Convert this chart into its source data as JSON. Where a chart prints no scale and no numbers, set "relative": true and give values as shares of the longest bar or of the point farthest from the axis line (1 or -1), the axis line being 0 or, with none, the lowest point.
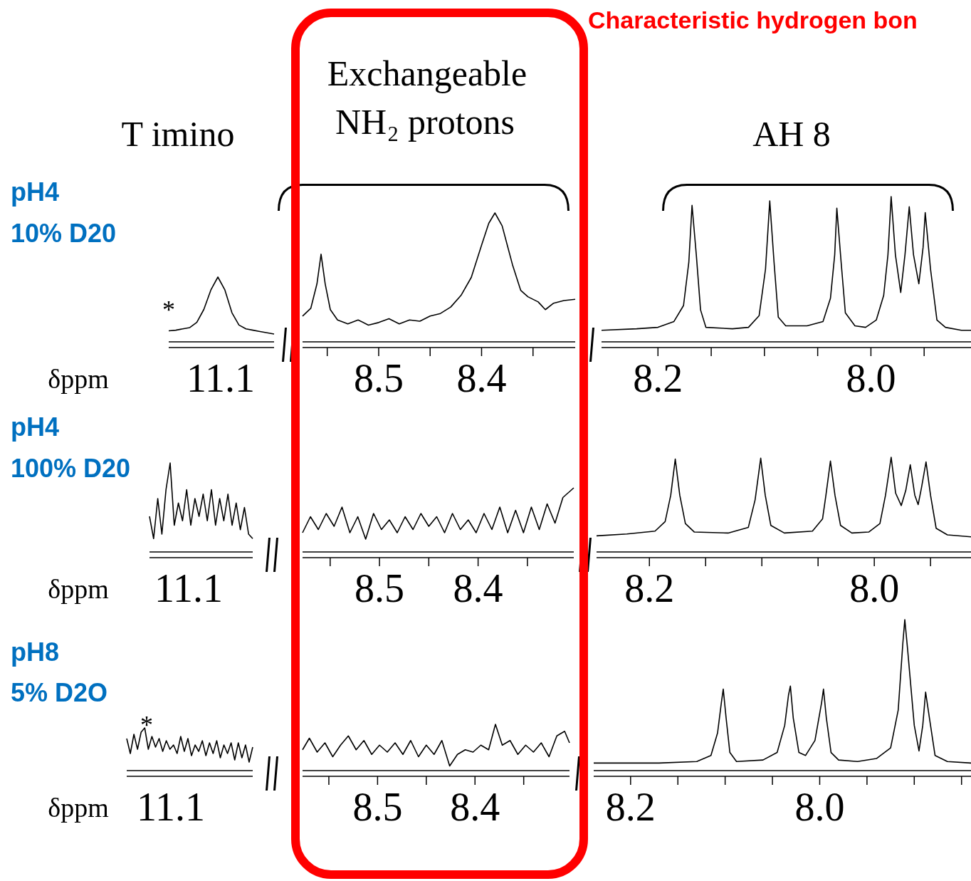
{
  "chart_data": [
    {
      "type": "line",
      "title": "pH4",
      "subtitle": "10% D20",
      "xlabel": "δppm",
      "annotations": [
        "T imino",
        "*",
        "11.1"
      ],
      "relative": true,
      "color": "#000000",
      "categories": [
        null,
        null,
        null,
        null,
        null,
        null,
        null,
        null,
        null,
        null,
        null,
        null,
        null,
        null,
        null,
        null
      ],
      "values": [
        0.17,
        0.18,
        0.2,
        0.22,
        0.3,
        0.5,
        0.8,
        1.0,
        0.8,
        0.45,
        0.26,
        0.2,
        0.18,
        0.16,
        0.14,
        0.12
      ]
    },
    {
      "type": "line",
      "annotations": [
        "Exchangeable",
        "NH₂  protons"
      ],
      "relative": true,
      "color": "#000000",
      "xlim": [
        8.574,
        8.309
      ],
      "xticks": [
        {
          "value": 8.55,
          "label": null
        },
        8.5,
        {
          "value": 8.45,
          "label": null
        },
        8.4,
        {
          "value": 8.35,
          "label": null
        }
      ],
      "x": [
        8.574,
        8.566,
        8.56,
        8.556,
        8.552,
        8.547,
        8.54,
        8.53,
        8.52,
        8.51,
        8.5,
        8.49,
        8.48,
        8.47,
        8.46,
        8.45,
        8.44,
        8.43,
        8.42,
        8.41,
        8.4,
        8.393,
        8.387,
        8.38,
        8.375,
        8.37,
        8.362,
        8.355,
        8.345,
        8.338,
        8.33,
        8.32,
        8.309
      ],
      "values": [
        0.2,
        0.26,
        0.45,
        0.68,
        0.45,
        0.25,
        0.17,
        0.14,
        0.17,
        0.13,
        0.15,
        0.18,
        0.14,
        0.17,
        0.16,
        0.2,
        0.22,
        0.27,
        0.36,
        0.5,
        0.75,
        0.92,
        1.0,
        0.9,
        0.75,
        0.6,
        0.4,
        0.35,
        0.31,
        0.25,
        0.3,
        0.32,
        0.33
      ]
    },
    {
      "type": "line",
      "annotations": [
        "AH 8",
        "Characteristic hydrogen bon"
      ],
      "relative": true,
      "color": "#000000",
      "xlim": [
        8.253,
        7.906
      ],
      "xticks": [
        8.2,
        {
          "value": 8.15,
          "label": null
        },
        {
          "value": 8.1,
          "label": null
        },
        {
          "value": 8.05,
          "label": null
        },
        {
          "value": 8.0,
          "label": "8.0"
        },
        {
          "value": 7.95,
          "label": null
        }
      ],
      "x": [
        8.253,
        8.22,
        8.2,
        8.185,
        8.176,
        8.171,
        8.168,
        8.164,
        8.16,
        8.155,
        8.13,
        8.115,
        8.105,
        8.099,
        8.095,
        8.091,
        8.087,
        8.08,
        8.06,
        8.045,
        8.038,
        8.034,
        8.032,
        8.028,
        8.024,
        8.015,
        8.005,
        7.995,
        7.988,
        7.984,
        7.981,
        7.977,
        7.972,
        7.968,
        7.964,
        7.96,
        7.955,
        7.951,
        7.949,
        7.944,
        7.938,
        7.93,
        7.915,
        7.906
      ],
      "values": [
        0.08,
        0.09,
        0.1,
        0.14,
        0.25,
        0.55,
        0.94,
        0.6,
        0.22,
        0.1,
        0.09,
        0.1,
        0.18,
        0.5,
        0.97,
        0.55,
        0.17,
        0.11,
        0.11,
        0.14,
        0.3,
        0.6,
        0.92,
        0.55,
        0.2,
        0.11,
        0.1,
        0.15,
        0.32,
        0.6,
        1.0,
        0.6,
        0.34,
        0.6,
        0.93,
        0.6,
        0.4,
        0.65,
        0.89,
        0.5,
        0.15,
        0.1,
        0.08,
        0.08
      ]
    },
    {
      "type": "line",
      "title": "pH4",
      "subtitle": "100% D20",
      "xlabel": "δppm",
      "annotations": [
        "11.1"
      ],
      "relative": true,
      "color": "#000000",
      "categories": [
        null,
        null,
        null,
        null,
        null,
        null,
        null,
        null,
        null,
        null,
        null,
        null,
        null,
        null,
        null,
        null,
        null,
        null,
        null,
        null,
        null,
        null,
        null,
        null,
        null,
        null
      ],
      "values": [
        0.4,
        0.15,
        0.6,
        0.2,
        0.7,
        1.0,
        0.3,
        0.55,
        0.35,
        0.7,
        0.3,
        0.6,
        0.4,
        0.65,
        0.35,
        0.7,
        0.3,
        0.6,
        0.35,
        0.65,
        0.3,
        0.55,
        0.25,
        0.5,
        0.2,
        0.15
      ]
    },
    {
      "type": "line",
      "relative": true,
      "color": "#000000",
      "xlim": [
        8.578,
        8.303
      ],
      "xticks": [
        {
          "value": 8.55,
          "label": null
        },
        8.5,
        {
          "value": 8.45,
          "label": null
        },
        8.4,
        {
          "value": 8.35,
          "label": null
        }
      ],
      "x": [
        8.578,
        8.57,
        8.562,
        8.554,
        8.546,
        8.538,
        8.53,
        8.522,
        8.514,
        8.506,
        8.498,
        8.49,
        8.482,
        8.474,
        8.466,
        8.458,
        8.45,
        8.442,
        8.434,
        8.426,
        8.418,
        8.41,
        8.402,
        8.394,
        8.386,
        8.378,
        8.37,
        8.362,
        8.354,
        8.346,
        8.338,
        8.33,
        8.322,
        8.314,
        8.303
      ],
      "values": [
        0.3,
        0.55,
        0.35,
        0.6,
        0.4,
        0.7,
        0.3,
        0.55,
        0.2,
        0.6,
        0.35,
        0.5,
        0.3,
        0.55,
        0.35,
        0.6,
        0.4,
        0.55,
        0.3,
        0.6,
        0.35,
        0.5,
        0.3,
        0.6,
        0.35,
        0.7,
        0.3,
        0.65,
        0.3,
        0.7,
        0.35,
        0.75,
        0.45,
        0.85,
        1.0
      ]
    },
    {
      "type": "line",
      "relative": true,
      "color": "#000000",
      "xlim": [
        8.247,
        7.914
      ],
      "xticks": [
        8.2,
        {
          "value": 8.15,
          "label": null
        },
        {
          "value": 8.1,
          "label": null
        },
        {
          "value": 8.05,
          "label": null
        },
        {
          "value": 8.0,
          "label": "8.0"
        },
        {
          "value": 7.95,
          "label": null
        }
      ],
      "x": [
        8.247,
        8.22,
        8.195,
        8.186,
        8.181,
        8.177,
        8.173,
        8.168,
        8.16,
        8.13,
        8.112,
        8.106,
        8.101,
        8.097,
        8.092,
        8.08,
        8.055,
        8.046,
        8.043,
        8.039,
        8.035,
        8.03,
        8.02,
        8.005,
        7.995,
        7.99,
        7.985,
        7.981,
        7.976,
        7.972,
        7.968,
        7.964,
        7.961,
        7.958,
        7.954,
        7.95,
        7.945,
        7.935,
        7.914
      ],
      "values": [
        0.17,
        0.19,
        0.22,
        0.32,
        0.6,
        0.98,
        0.6,
        0.3,
        0.21,
        0.2,
        0.26,
        0.55,
        0.99,
        0.6,
        0.28,
        0.2,
        0.22,
        0.35,
        0.6,
        0.96,
        0.6,
        0.28,
        0.2,
        0.21,
        0.3,
        0.6,
        1.0,
        0.62,
        0.49,
        0.65,
        0.92,
        0.6,
        0.5,
        0.68,
        0.95,
        0.6,
        0.25,
        0.18,
        0.16
      ]
    },
    {
      "type": "line",
      "title": "pH8",
      "subtitle": "5% D2O",
      "xlabel": "δppm",
      "annotations": [
        "*",
        "11.1"
      ],
      "relative": true,
      "color": "#000000",
      "categories": [
        null,
        null,
        null,
        null,
        null,
        null,
        null,
        null,
        null,
        null,
        null,
        null,
        null,
        null,
        null,
        null,
        null,
        null,
        null,
        null,
        null,
        null,
        null,
        null,
        null,
        null,
        null,
        null,
        null,
        null,
        null,
        null,
        null,
        null,
        null,
        null
      ],
      "values": [
        0.75,
        0.4,
        0.85,
        0.5,
        0.9,
        1.0,
        0.5,
        0.8,
        0.55,
        0.75,
        0.45,
        0.7,
        0.5,
        0.6,
        0.4,
        0.8,
        0.45,
        0.75,
        0.35,
        0.6,
        0.45,
        0.7,
        0.35,
        0.65,
        0.4,
        0.7,
        0.3,
        0.6,
        0.4,
        0.65,
        0.25,
        0.65,
        0.3,
        0.6,
        0.2,
        0.55
      ]
    },
    {
      "type": "line",
      "relative": true,
      "color": "#000000",
      "xlim": [
        8.577,
        8.303
      ],
      "xticks": [
        {
          "value": 8.55,
          "label": null
        },
        8.5,
        {
          "value": 8.45,
          "label": null
        },
        8.4,
        {
          "value": 8.35,
          "label": null
        }
      ],
      "x": [
        8.577,
        8.57,
        8.562,
        8.554,
        8.546,
        8.538,
        8.53,
        8.522,
        8.514,
        8.506,
        8.498,
        8.49,
        8.482,
        8.474,
        8.466,
        8.458,
        8.45,
        8.442,
        8.434,
        8.426,
        8.418,
        8.41,
        8.402,
        8.394,
        8.386,
        8.379,
        8.372,
        8.364,
        8.356,
        8.348,
        8.34,
        8.332,
        8.324,
        8.316,
        8.308,
        8.303
      ],
      "values": [
        0.45,
        0.7,
        0.4,
        0.6,
        0.3,
        0.55,
        0.75,
        0.45,
        0.65,
        0.35,
        0.55,
        0.4,
        0.6,
        0.35,
        0.65,
        0.3,
        0.55,
        0.35,
        0.65,
        0.1,
        0.35,
        0.45,
        0.4,
        0.55,
        0.45,
        1.0,
        0.55,
        0.65,
        0.35,
        0.55,
        0.4,
        0.6,
        0.3,
        0.75,
        0.85,
        0.6
      ]
    },
    {
      "type": "line",
      "relative": true,
      "color": "#000000",
      "xlim": [
        8.239,
        7.84
      ],
      "xticks": [
        8.2,
        {
          "value": 8.15,
          "label": null
        },
        {
          "value": 8.1,
          "label": null
        },
        {
          "value": 8.05,
          "label": null
        },
        {
          "value": 8.0,
          "label": "8.0"
        },
        {
          "value": 7.95,
          "label": null
        },
        {
          "value": 7.9,
          "label": null
        },
        {
          "value": 7.85,
          "label": null
        }
      ],
      "x": [
        8.239,
        8.2,
        8.17,
        8.13,
        8.115,
        8.108,
        8.104,
        8.102,
        8.099,
        8.095,
        8.088,
        8.06,
        8.045,
        8.037,
        8.033,
        8.031,
        8.028,
        8.022,
        8.015,
        8.005,
        7.998,
        7.996,
        7.993,
        7.988,
        7.98,
        7.96,
        7.94,
        7.925,
        7.917,
        7.912,
        7.91,
        7.907,
        7.9,
        7.895,
        7.891,
        7.888,
        7.884,
        7.878,
        7.865,
        7.84
      ],
      "values": [
        0.05,
        0.05,
        0.05,
        0.06,
        0.1,
        0.25,
        0.45,
        0.54,
        0.35,
        0.12,
        0.06,
        0.07,
        0.12,
        0.3,
        0.5,
        0.56,
        0.35,
        0.12,
        0.1,
        0.2,
        0.45,
        0.54,
        0.35,
        0.12,
        0.07,
        0.06,
        0.08,
        0.15,
        0.4,
        0.85,
        1.0,
        0.8,
        0.3,
        0.13,
        0.3,
        0.52,
        0.35,
        0.1,
        0.06,
        0.05
      ]
    }
  ]
}
